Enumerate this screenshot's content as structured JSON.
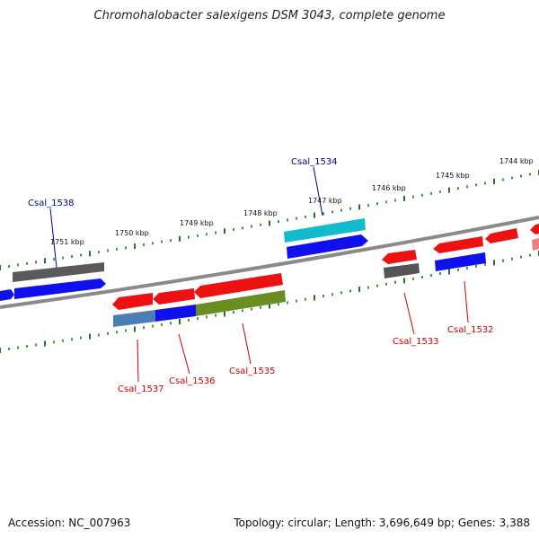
{
  "title": "Chromohalobacter salexigens DSM 3043, complete genome",
  "accession": "Accession: NC_007963",
  "topology": "Topology: circular; Length: 3,696,649 bp; Genes: 3,388",
  "scale_labels": [
    "1751 kbp",
    "1750 kbp",
    "1749 kbp",
    "1748 kbp",
    "1747 kbp",
    "1746 kbp",
    "1745 kbp",
    "1744 kbp"
  ],
  "gene_labels": [
    "Csal_1538",
    "Csal_1534",
    "Csal_1537",
    "Csal_1536",
    "Csal_1535",
    "Csal_1533",
    "Csal_1532"
  ],
  "colors": {
    "forward_label": "#00008b",
    "reverse_label": "#cc0000",
    "backbone": "#808080",
    "tick": "#1a7a1a",
    "red": "#ee1111",
    "blue": "#1010ee",
    "gray": "#555555",
    "cyan": "#11bbcc",
    "olive": "#6b8e23",
    "steel": "#4a7fb5"
  }
}
